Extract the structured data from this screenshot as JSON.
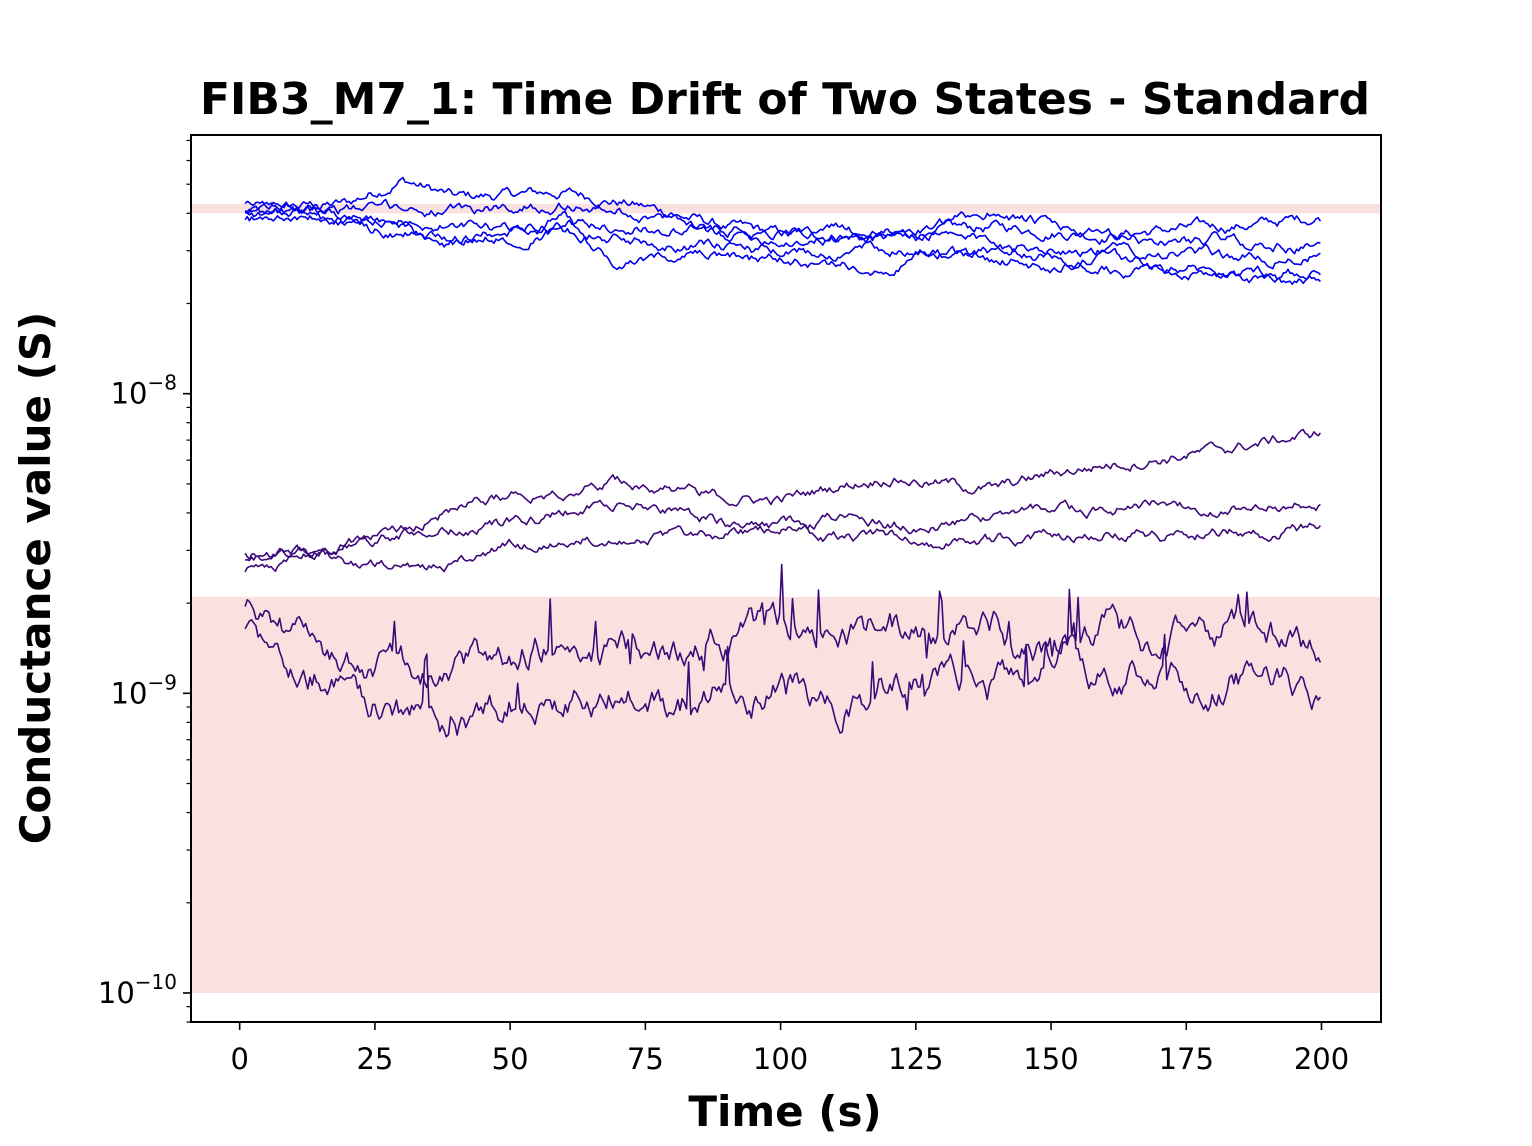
{
  "chart_data": {
    "type": "line",
    "title": "FIB3_M7_1: Time Drift of Two States - Standard",
    "xlabel": "Time (s)",
    "ylabel": "Conductance value (S)",
    "yscale": "log",
    "xlim": [
      -9,
      211
    ],
    "ylim": [
      8e-11,
      7.3e-08
    ],
    "grid": false,
    "legend": "none",
    "x_ticks": [
      {
        "value": 0,
        "label": "0"
      },
      {
        "value": 25,
        "label": "25"
      },
      {
        "value": 50,
        "label": "50"
      },
      {
        "value": 75,
        "label": "75"
      },
      {
        "value": 100,
        "label": "100"
      },
      {
        "value": 125,
        "label": "125"
      },
      {
        "value": 150,
        "label": "150"
      },
      {
        "value": 175,
        "label": "175"
      },
      {
        "value": 200,
        "label": "200"
      }
    ],
    "y_ticks": [
      {
        "value": 1e-10,
        "base": "10",
        "exp": "−10"
      },
      {
        "value": 1e-09,
        "base": "10",
        "exp": "−9"
      },
      {
        "value": 1e-08,
        "base": "10",
        "exp": "−8"
      }
    ],
    "bands": [
      {
        "ymin": 1e-10,
        "ymax": 2.1e-09,
        "color": "#f8e1df"
      },
      {
        "ymin": 4e-08,
        "ymax": 4.3e-08,
        "color": "#f8e1df"
      }
    ],
    "x": [
      1,
      10,
      20,
      30,
      40,
      50,
      60,
      70,
      80,
      90,
      100,
      110,
      120,
      130,
      140,
      150,
      160,
      170,
      180,
      190,
      200
    ],
    "series": [
      {
        "color": "#0000ee",
        "values": [
          4e-08,
          4.2e-08,
          4.3e-08,
          5.2e-08,
          4.5e-08,
          4.6e-08,
          4.7e-08,
          4.4e-08,
          4e-08,
          3.6e-08,
          3.4e-08,
          3.4e-08,
          3.3e-08,
          3.5e-08,
          3.6e-08,
          3.5e-08,
          3.4e-08,
          3.5e-08,
          3.6e-08,
          3.7e-08,
          3.9e-08
        ]
      },
      {
        "color": "#0000ee",
        "values": [
          4.2e-08,
          4.3e-08,
          4.1e-08,
          4.2e-08,
          4e-08,
          4.2e-08,
          4.3e-08,
          4.1e-08,
          3.8e-08,
          3.6e-08,
          3.5e-08,
          3.5e-08,
          3.4e-08,
          3.6e-08,
          4.1e-08,
          3.6e-08,
          3.3e-08,
          3.2e-08,
          3.3e-08,
          3.1e-08,
          3.1e-08
        ]
      },
      {
        "color": "#0000ee",
        "values": [
          4.1e-08,
          4e-08,
          3.8e-08,
          3.7e-08,
          3.6e-08,
          3.5e-08,
          3.7e-08,
          3.6e-08,
          3.5e-08,
          3.4e-08,
          3.3e-08,
          3.3e-08,
          3.4e-08,
          3.3e-08,
          3.2e-08,
          3.1e-08,
          3e-08,
          3e-08,
          2.9e-08,
          2.8e-08,
          2.9e-08
        ]
      },
      {
        "color": "#0000ee",
        "values": [
          3.8e-08,
          3.9e-08,
          3.7e-08,
          3.4e-08,
          3.3e-08,
          3.4e-08,
          3.5e-08,
          3.3e-08,
          3.2e-08,
          3.1e-08,
          2.9e-08,
          3e-08,
          3.1e-08,
          2.9e-08,
          3e-08,
          2.9e-08,
          2.8e-08,
          2.7e-08,
          2.6e-08,
          2.6e-08,
          2.5e-08
        ]
      },
      {
        "color": "#0000ee",
        "values": [
          4e-08,
          4.1e-08,
          4e-08,
          3.6e-08,
          3.2e-08,
          3.5e-08,
          3.9e-08,
          2.6e-08,
          2.9e-08,
          2.8e-08,
          2.8e-08,
          2.6e-08,
          2.7e-08,
          3e-08,
          2.8e-08,
          2.7e-08,
          2.6e-08,
          2.5e-08,
          2.5e-08,
          2.4e-08,
          2.3e-08
        ]
      },
      {
        "color": "#3d0a7a",
        "values": [
          2.6e-09,
          2.8e-09,
          3.2e-09,
          3.6e-09,
          4.2e-09,
          4.6e-09,
          4.8e-09,
          5.1e-09,
          4.9e-09,
          4.5e-09,
          4.4e-09,
          4.9e-09,
          5.3e-09,
          5e-09,
          4.8e-09,
          5.4e-09,
          5.8e-09,
          6.1e-09,
          6.4e-09,
          6.9e-09,
          7.4e-09
        ]
      },
      {
        "color": "#3d0a7a",
        "values": [
          2.8e-09,
          2.9e-09,
          3.1e-09,
          3.4e-09,
          3.5e-09,
          3.7e-09,
          4e-09,
          4.3e-09,
          4.1e-09,
          3.7e-09,
          3.6e-09,
          3.8e-09,
          3.6e-09,
          3.7e-09,
          3.9e-09,
          4.2e-09,
          4e-09,
          4.3e-09,
          4.1e-09,
          4.2e-09,
          4.4e-09
        ]
      },
      {
        "color": "#3d0a7a",
        "values": [
          2.9e-09,
          3e-09,
          2.7e-09,
          2.6e-09,
          2.7e-09,
          3.1e-09,
          3.2e-09,
          3.4e-09,
          3.3e-09,
          3.4e-09,
          3.5e-09,
          3.3e-09,
          3.4e-09,
          3.2e-09,
          3.3e-09,
          3.3e-09,
          3.5e-09,
          3.4e-09,
          3.5e-09,
          3.4e-09,
          3.6e-09
        ]
      },
      {
        "color": "#3d0a7a",
        "values": [
          1.8e-09,
          1.5e-09,
          1.3e-09,
          1.2e-09,
          1.3e-09,
          1.4e-09,
          1.5e-09,
          1.5e-09,
          1.4e-09,
          1.5e-09,
          1.7e-09,
          1.6e-09,
          1.7e-09,
          1.5e-09,
          1.6e-09,
          1.4e-09,
          1.6e-09,
          1.5e-09,
          1.7e-09,
          1.6e-09,
          1.4e-09
        ]
      },
      {
        "color": "#3d0a7a",
        "values": [
          1.7e-09,
          1.3e-09,
          1.1e-09,
          8.5e-10,
          7.5e-10,
          9.5e-10,
          9.5e-10,
          1e-09,
          9e-10,
          1e-09,
          1e-09,
          8.8e-10,
          1.1e-09,
          1.15e-09,
          1.15e-09,
          1.25e-09,
          1.2e-09,
          1.25e-09,
          1.15e-09,
          1.1e-09,
          1e-09
        ]
      }
    ]
  }
}
